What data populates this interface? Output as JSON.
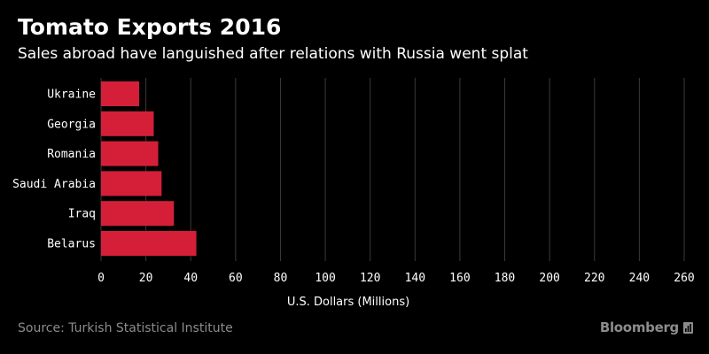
{
  "title": "Tomato Exports 2016",
  "subtitle": "Sales abroad have languished after relations with Russia went splat",
  "source": "Source: Turkish Statistical Institute",
  "brand": "Bloomberg",
  "brand_icon": "bloomberg-chart-icon",
  "colors": {
    "bar": "#d51f38",
    "background": "#000000",
    "grid": "#3a3a3a",
    "text": "#ffffff",
    "muted": "#8c8c8c"
  },
  "chart_data": {
    "type": "bar",
    "orientation": "horizontal",
    "categories": [
      "Ukraine",
      "Georgia",
      "Romania",
      "Saudi Arabia",
      "Iraq",
      "Belarus"
    ],
    "values": [
      17,
      23.5,
      25.5,
      27,
      32.5,
      42.5
    ],
    "xlabel": "U.S. Dollars (Millions)",
    "xlim": [
      0,
      260
    ],
    "xticks": [
      0,
      20,
      40,
      60,
      80,
      100,
      120,
      140,
      160,
      180,
      200,
      220,
      240,
      260
    ],
    "grid": true
  }
}
